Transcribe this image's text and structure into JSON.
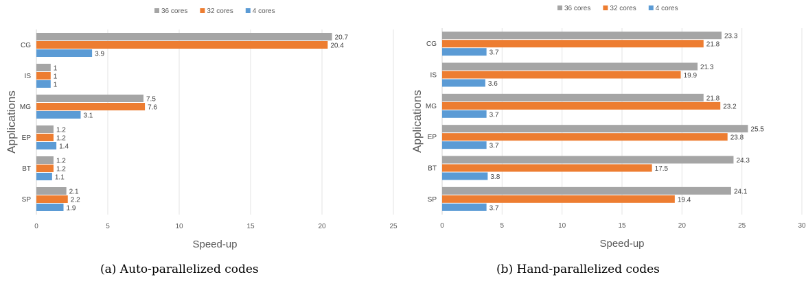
{
  "chart_data": [
    {
      "type": "bar",
      "orientation": "horizontal",
      "caption": "(a) Auto-parallelized codes",
      "categories": [
        "CG",
        "IS",
        "MG",
        "EP",
        "BT",
        "SP"
      ],
      "series": [
        {
          "name": "36 cores",
          "color": "#a5a5a5",
          "values": [
            20.7,
            1,
            7.5,
            1.2,
            1.2,
            2.1
          ]
        },
        {
          "name": "32 cores",
          "color": "#ed7d31",
          "values": [
            20.4,
            1,
            7.6,
            1.2,
            1.2,
            2.2
          ]
        },
        {
          "name": "4 cores",
          "color": "#5b9bd5",
          "values": [
            3.9,
            1,
            3.1,
            1.4,
            1.1,
            1.9
          ]
        }
      ],
      "xlabel": "Speed-up",
      "ylabel": "Applications",
      "xlim": [
        0,
        25
      ],
      "xticks": [
        0,
        5,
        10,
        15,
        20,
        25
      ],
      "grid": true,
      "legend": "top-center"
    },
    {
      "type": "bar",
      "orientation": "horizontal",
      "caption": "(b) Hand-parallelized codes",
      "categories": [
        "CG",
        "IS",
        "MG",
        "EP",
        "BT",
        "SP"
      ],
      "series": [
        {
          "name": "36 cores",
          "color": "#a5a5a5",
          "values": [
            23.3,
            21.3,
            21.8,
            25.5,
            24.3,
            24.1
          ]
        },
        {
          "name": "32 cores",
          "color": "#ed7d31",
          "values": [
            21.8,
            19.9,
            23.2,
            23.8,
            17.5,
            19.4
          ]
        },
        {
          "name": "4 cores",
          "color": "#5b9bd5",
          "values": [
            3.7,
            3.6,
            3.7,
            3.7,
            3.8,
            3.7
          ]
        }
      ],
      "xlabel": "Speed-up",
      "ylabel": "Applications",
      "xlim": [
        0,
        30
      ],
      "xticks": [
        0,
        5,
        10,
        15,
        20,
        25,
        30
      ],
      "grid": true,
      "legend": "top-center"
    }
  ]
}
